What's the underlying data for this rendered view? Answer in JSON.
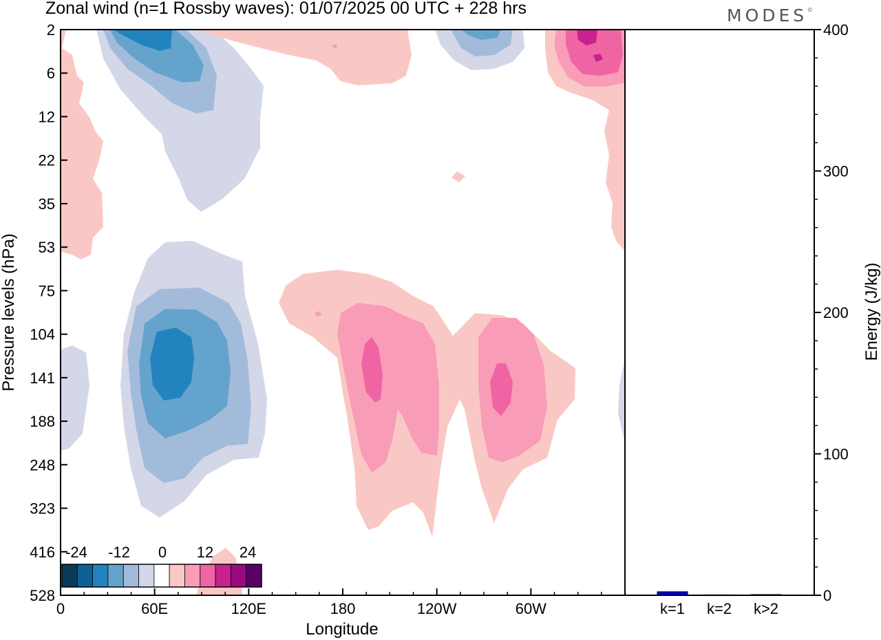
{
  "header": {
    "title": "Zonal wind (n=1 Rossby waves):  01/07/2025  00 UTC  + 228 hrs",
    "brand": "MODES",
    "brand_mark": "©"
  },
  "chart_data": [
    {
      "type": "contour",
      "title": "Zonal wind (n=1 Rossby waves):  01/07/2025  00 UTC  + 228 hrs",
      "xlabel": "Longitude",
      "ylabel": "Pressure levels (hPa)",
      "x_ticks": [
        "0",
        "60E",
        "120E",
        "180",
        "120W",
        "60W"
      ],
      "x_tick_degrees": [
        0,
        60,
        120,
        180,
        240,
        300
      ],
      "xlim": [
        0,
        360
      ],
      "y_ticks": [
        "2",
        "6",
        "12",
        "22",
        "35",
        "53",
        "75",
        "104",
        "141",
        "188",
        "248",
        "323",
        "416",
        "528"
      ],
      "y_scale": "model levels (pressure, top = 2 hPa)",
      "colorbar": {
        "labels": [
          "-24",
          "-12",
          "0",
          "12",
          "24"
        ],
        "levels": [
          -28,
          -24,
          -20,
          -16,
          -12,
          -8,
          -4,
          4,
          8,
          12,
          16,
          20,
          24,
          28
        ],
        "colors": [
          "#0a3c5a",
          "#0c6197",
          "#2383bf",
          "#64a3cc",
          "#a3bbdb",
          "#d4d7e8",
          "#ffffff",
          "#fac8c4",
          "#f89cb8",
          "#ef64a3",
          "#c9218e",
          "#9a0b80",
          "#5a0168"
        ]
      },
      "features": [
        {
          "sign": "negative",
          "min_level": -20,
          "center_lon": 70,
          "center_hPa": 130
        },
        {
          "sign": "negative",
          "min_level": -20,
          "center_lon": 40,
          "center_hPa": 2
        },
        {
          "sign": "negative",
          "min_level": -12,
          "center_lon": 270,
          "center_hPa": 2
        },
        {
          "sign": "positive",
          "max_level": 16,
          "center_lon": 200,
          "center_hPa": 140
        },
        {
          "sign": "positive",
          "max_level": 16,
          "center_lon": 282,
          "center_hPa": 150
        },
        {
          "sign": "positive",
          "max_level": 24,
          "center_lon": 345,
          "center_hPa": 4
        }
      ]
    },
    {
      "type": "bar",
      "ylabel": "Energy (J/kg)",
      "categories": [
        "k=1",
        "k=2",
        "k>2"
      ],
      "values": [
        2.5,
        0.3,
        0.5
      ],
      "ylim": [
        0,
        400
      ],
      "y_ticks": [
        "0",
        "100",
        "200",
        "300",
        "400"
      ],
      "y_tick_values": [
        0,
        100,
        200,
        300,
        400
      ],
      "colors": [
        "#0000cc",
        "#0000cc",
        "#0000cc"
      ]
    }
  ]
}
